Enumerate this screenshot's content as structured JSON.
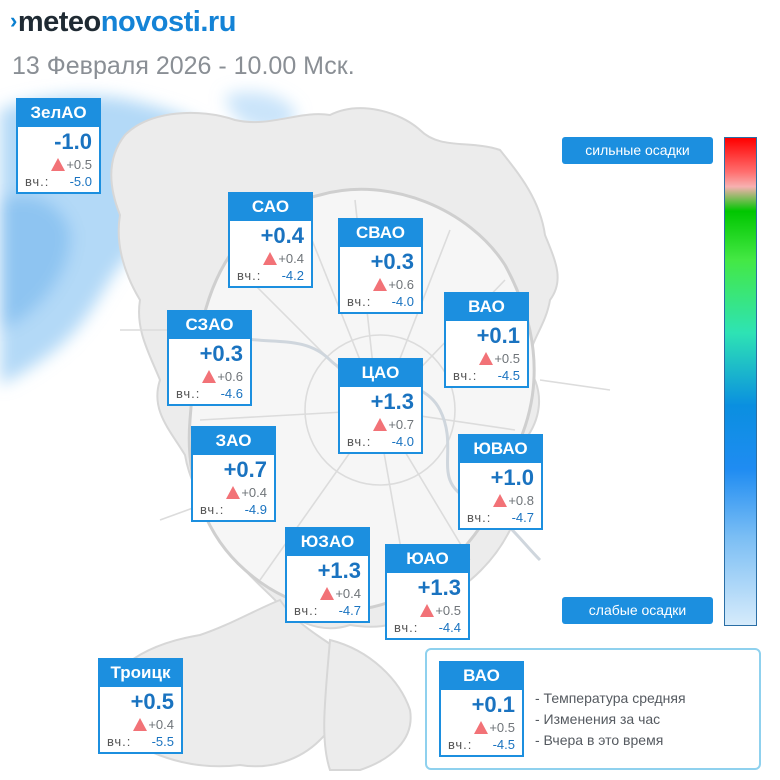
{
  "logo": {
    "part_dark": "meteo",
    "part_blue": "novosti.ru"
  },
  "subtitle": "13 Февраля 2026 - 10.00 Мск.",
  "yesterday_label": "вч.:",
  "districts": [
    {
      "name": "ЗелАО",
      "temp": "-1.0",
      "change": "+0.5",
      "yesterday": "-5.0"
    },
    {
      "name": "САО",
      "temp": "+0.4",
      "change": "+0.4",
      "yesterday": "-4.2"
    },
    {
      "name": "СВАО",
      "temp": "+0.3",
      "change": "+0.6",
      "yesterday": "-4.0"
    },
    {
      "name": "ВАО",
      "temp": "+0.1",
      "change": "+0.5",
      "yesterday": "-4.5"
    },
    {
      "name": "СЗАО",
      "temp": "+0.3",
      "change": "+0.6",
      "yesterday": "-4.6"
    },
    {
      "name": "ЦАО",
      "temp": "+1.3",
      "change": "+0.7",
      "yesterday": "-4.0"
    },
    {
      "name": "ЗАО",
      "temp": "+0.7",
      "change": "+0.4",
      "yesterday": "-4.9"
    },
    {
      "name": "ЮВАО",
      "temp": "+1.0",
      "change": "+0.8",
      "yesterday": "-4.7"
    },
    {
      "name": "ЮЗАО",
      "temp": "+1.3",
      "change": "+0.4",
      "yesterday": "-4.7"
    },
    {
      "name": "ЮАО",
      "temp": "+1.3",
      "change": "+0.5",
      "yesterday": "-4.4"
    },
    {
      "name": "Троицк",
      "temp": "+0.5",
      "change": "+0.4",
      "yesterday": "-5.5"
    }
  ],
  "precip_scale": {
    "top_label": "сильные осадки",
    "bottom_label": "слабые осадки",
    "colors": [
      "#ff0000",
      "#00c600",
      "#0a8fe0",
      "#d6ebfb"
    ]
  },
  "legend": {
    "sample": {
      "name": "ВАО",
      "temp": "+0.1",
      "change": "+0.5",
      "yesterday": "-4.5"
    },
    "lines": [
      "- Температура средняя",
      "- Изменения за час",
      "- Вчера в это время"
    ]
  },
  "colors": {
    "accent": "#1c8fdf",
    "change_arrow": "#f27277",
    "precip_area": "#a6d2f6"
  },
  "icons": {
    "change": "triangle-up-icon",
    "logo_mark": "chevron-right-icon"
  }
}
